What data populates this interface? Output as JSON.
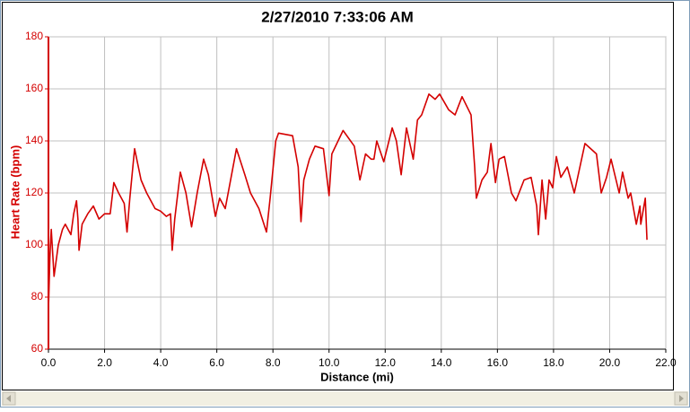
{
  "chart_data": {
    "type": "line",
    "title": "2/27/2010 7:33:06 AM",
    "x_label": "Distance (mi)",
    "y_label": "Heart Rate (bpm)",
    "color": "#d40000",
    "grid": true,
    "xlim": [
      0,
      22
    ],
    "ylim": [
      60,
      180
    ],
    "xticks": [
      {
        "value": 0,
        "label": "0.0"
      },
      {
        "value": 2,
        "label": "2.0"
      },
      {
        "value": 4,
        "label": "4.0"
      },
      {
        "value": 6,
        "label": "6.0"
      },
      {
        "value": 8,
        "label": "8.0"
      },
      {
        "value": 10,
        "label": "10.0"
      },
      {
        "value": 12,
        "label": "12.0"
      },
      {
        "value": 14,
        "label": "14.0"
      },
      {
        "value": 16,
        "label": "16.0"
      },
      {
        "value": 18,
        "label": "18.0"
      },
      {
        "value": 20,
        "label": "20.0"
      },
      {
        "value": 22,
        "label": "22.0"
      }
    ],
    "yticks": [
      60,
      80,
      100,
      120,
      140,
      160,
      180
    ],
    "x": [
      0,
      0.05,
      0.1,
      0.2,
      0.35,
      0.5,
      0.6,
      0.8,
      0.9,
      1.0,
      1.05,
      1.09,
      1.2,
      1.4,
      1.6,
      1.8,
      2.0,
      2.2,
      2.33,
      2.5,
      2.6,
      2.7,
      2.8,
      2.9,
      3.07,
      3.3,
      3.5,
      3.8,
      4.0,
      4.2,
      4.35,
      4.41,
      4.5,
      4.7,
      4.9,
      5.1,
      5.3,
      5.53,
      5.7,
      5.95,
      6.1,
      6.3,
      6.7,
      7.0,
      7.2,
      7.5,
      7.77,
      7.9,
      8.1,
      8.2,
      8.7,
      8.9,
      9.0,
      9.1,
      9.3,
      9.5,
      9.8,
      10.0,
      10.1,
      10.5,
      10.9,
      11.1,
      11.3,
      11.5,
      11.6,
      11.7,
      11.95,
      12.25,
      12.4,
      12.57,
      12.76,
      13.0,
      13.15,
      13.3,
      13.56,
      13.78,
      13.94,
      14.26,
      14.49,
      14.74,
      15.06,
      15.19,
      15.25,
      15.45,
      15.64,
      15.77,
      15.93,
      16.06,
      16.25,
      16.5,
      16.66,
      16.95,
      17.2,
      17.4,
      17.46,
      17.59,
      17.72,
      17.84,
      17.97,
      18.1,
      18.26,
      18.49,
      18.74,
      19.12,
      19.53,
      19.7,
      19.89,
      20.05,
      20.34,
      20.46,
      20.66,
      20.75,
      20.95,
      21.08,
      21.11,
      21.27,
      21.33
    ],
    "values": [
      75,
      95,
      106,
      88,
      100,
      106,
      108,
      104,
      112,
      117,
      110,
      98,
      108,
      112,
      115,
      110,
      112,
      112,
      124,
      120,
      118,
      116,
      105,
      118,
      137,
      125,
      120,
      114,
      113,
      111,
      112,
      98,
      110,
      128,
      120,
      107,
      120,
      133,
      127,
      111,
      118,
      114,
      137,
      127,
      120,
      114,
      105,
      118,
      140,
      143,
      142,
      130,
      109,
      125,
      133,
      138,
      137,
      119,
      135,
      144,
      138,
      125,
      135,
      133,
      133,
      140,
      132,
      145,
      140,
      127,
      145,
      133,
      148,
      150,
      158,
      156,
      158,
      152,
      150,
      157,
      150,
      130,
      118,
      125,
      128,
      139,
      124,
      133,
      134,
      120,
      117,
      125,
      126,
      115,
      104,
      125,
      110,
      125,
      122,
      134,
      126,
      130,
      120,
      139,
      135,
      120,
      126,
      133,
      120,
      128,
      118,
      120,
      108,
      115,
      108,
      118,
      102
    ]
  }
}
